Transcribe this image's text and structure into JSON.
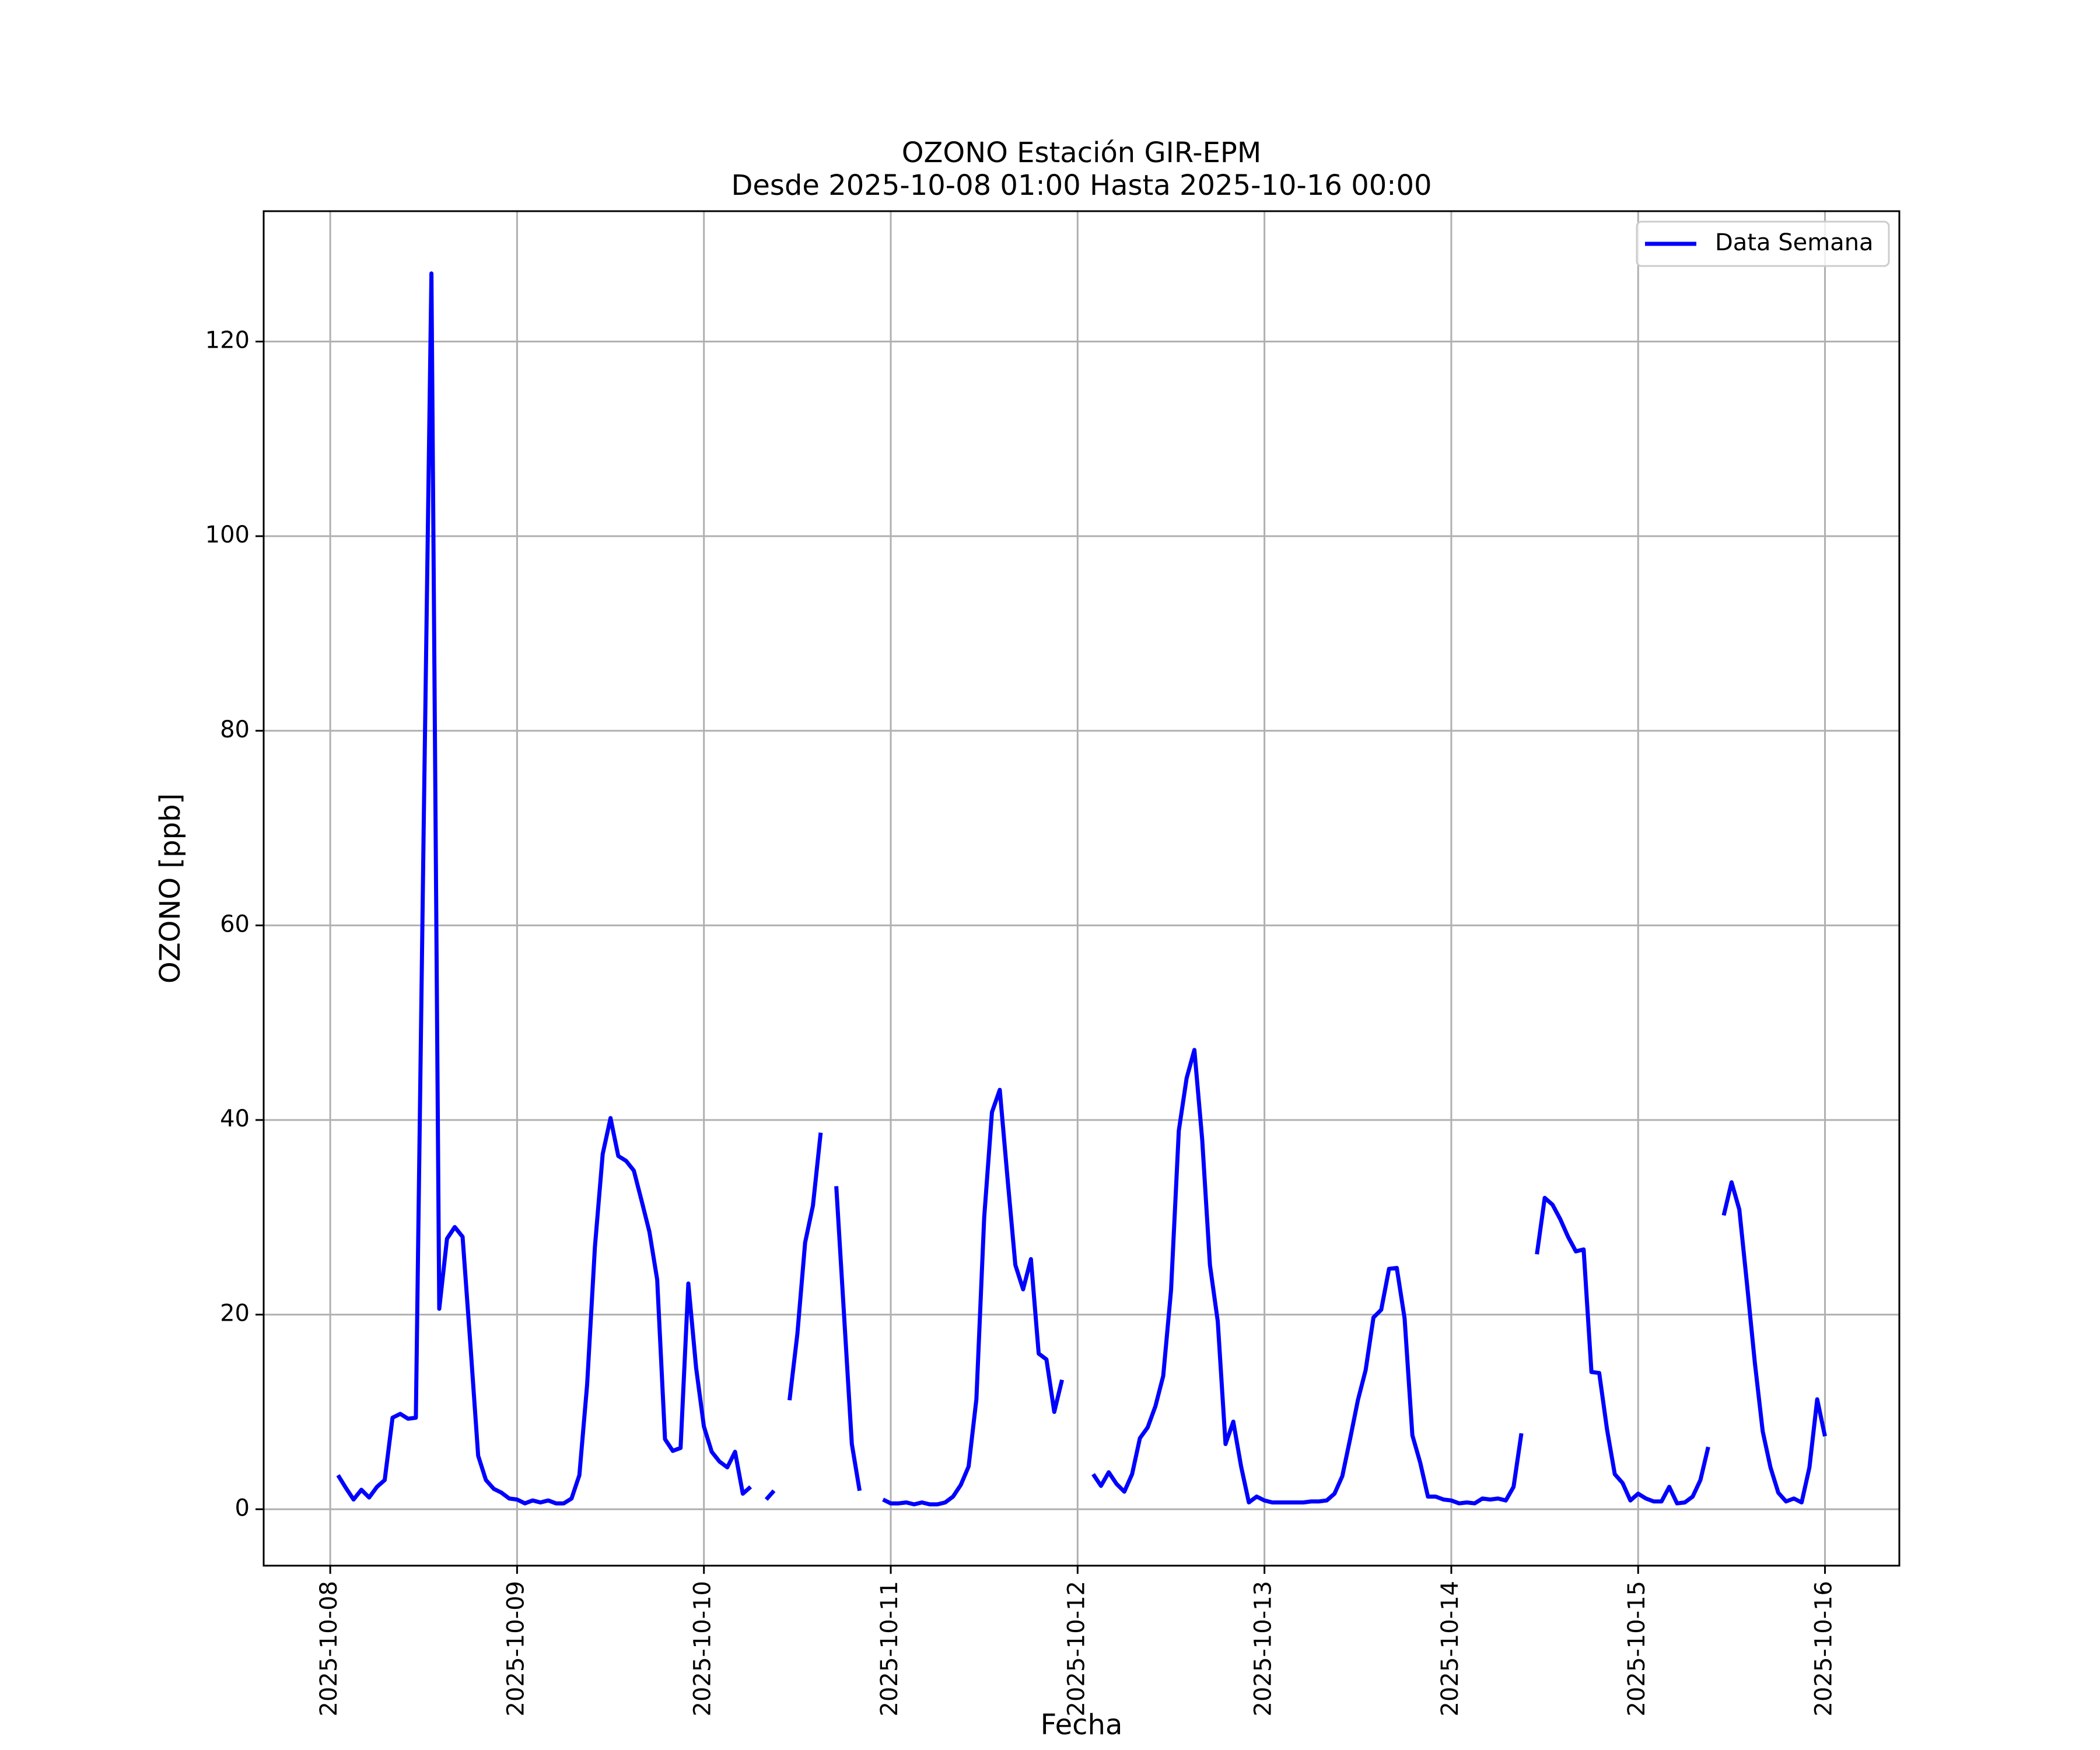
{
  "chart_data": {
    "type": "line",
    "title": "OZONO Estación GIR-EPM",
    "subtitle": "Desde 2025-10-08 01:00 Hasta 2025-10-16 00:00",
    "x_label": "Fecha",
    "y_label": "OZONO [ppb]",
    "x": [
      "2025-10-08 01:00",
      "2025-10-08 02:00",
      "2025-10-08 03:00",
      "2025-10-08 04:00",
      "2025-10-08 05:00",
      "2025-10-08 06:00",
      "2025-10-08 07:00",
      "2025-10-08 08:00",
      "2025-10-08 09:00",
      "2025-10-08 10:00",
      "2025-10-08 11:00",
      "2025-10-08 12:00",
      "2025-10-08 13:00",
      "2025-10-08 14:00",
      "2025-10-08 15:00",
      "2025-10-08 16:00",
      "2025-10-08 17:00",
      "2025-10-08 18:00",
      "2025-10-08 19:00",
      "2025-10-08 20:00",
      "2025-10-08 21:00",
      "2025-10-08 22:00",
      "2025-10-08 23:00",
      "2025-10-09 00:00",
      "2025-10-09 01:00",
      "2025-10-09 02:00",
      "2025-10-09 03:00",
      "2025-10-09 04:00",
      "2025-10-09 05:00",
      "2025-10-09 06:00",
      "2025-10-09 07:00",
      "2025-10-09 08:00",
      "2025-10-09 09:00",
      "2025-10-09 10:00",
      "2025-10-09 11:00",
      "2025-10-09 12:00",
      "2025-10-09 13:00",
      "2025-10-09 14:00",
      "2025-10-09 15:00",
      "2025-10-09 16:00",
      "2025-10-09 17:00",
      "2025-10-09 18:00",
      "2025-10-09 19:00",
      "2025-10-09 20:00",
      "2025-10-09 21:00",
      "2025-10-09 22:00",
      "2025-10-09 23:00",
      "2025-10-10 00:00",
      "2025-10-10 01:00",
      "2025-10-10 02:00",
      "2025-10-10 03:00",
      "2025-10-10 04:00",
      "2025-10-10 05:00",
      "2025-10-10 06:00",
      "2025-10-10 07:00",
      "2025-10-10 08:00",
      "2025-10-10 09:00",
      "2025-10-10 10:00",
      "2025-10-10 11:00",
      "2025-10-10 12:00",
      "2025-10-10 13:00",
      "2025-10-10 14:00",
      "2025-10-10 15:00",
      "2025-10-10 16:00",
      "2025-10-10 17:00",
      "2025-10-10 18:00",
      "2025-10-10 19:00",
      "2025-10-10 20:00",
      "2025-10-10 21:00",
      "2025-10-10 22:00",
      "2025-10-10 23:00",
      "2025-10-11 00:00",
      "2025-10-11 01:00",
      "2025-10-11 02:00",
      "2025-10-11 03:00",
      "2025-10-11 04:00",
      "2025-10-11 05:00",
      "2025-10-11 06:00",
      "2025-10-11 07:00",
      "2025-10-11 08:00",
      "2025-10-11 09:00",
      "2025-10-11 10:00",
      "2025-10-11 11:00",
      "2025-10-11 12:00",
      "2025-10-11 13:00",
      "2025-10-11 14:00",
      "2025-10-11 15:00",
      "2025-10-11 16:00",
      "2025-10-11 17:00",
      "2025-10-11 18:00",
      "2025-10-11 19:00",
      "2025-10-11 20:00",
      "2025-10-11 21:00",
      "2025-10-11 22:00",
      "2025-10-11 23:00",
      "2025-10-12 00:00",
      "2025-10-12 01:00",
      "2025-10-12 02:00",
      "2025-10-12 03:00",
      "2025-10-12 04:00",
      "2025-10-12 05:00",
      "2025-10-12 06:00",
      "2025-10-12 07:00",
      "2025-10-12 08:00",
      "2025-10-12 09:00",
      "2025-10-12 10:00",
      "2025-10-12 11:00",
      "2025-10-12 12:00",
      "2025-10-12 13:00",
      "2025-10-12 14:00",
      "2025-10-12 15:00",
      "2025-10-12 16:00",
      "2025-10-12 17:00",
      "2025-10-12 18:00",
      "2025-10-12 19:00",
      "2025-10-12 20:00",
      "2025-10-12 21:00",
      "2025-10-12 22:00",
      "2025-10-12 23:00",
      "2025-10-13 00:00",
      "2025-10-13 01:00",
      "2025-10-13 02:00",
      "2025-10-13 03:00",
      "2025-10-13 04:00",
      "2025-10-13 05:00",
      "2025-10-13 06:00",
      "2025-10-13 07:00",
      "2025-10-13 08:00",
      "2025-10-13 09:00",
      "2025-10-13 10:00",
      "2025-10-13 11:00",
      "2025-10-13 12:00",
      "2025-10-13 13:00",
      "2025-10-13 14:00",
      "2025-10-13 15:00",
      "2025-10-13 16:00",
      "2025-10-13 17:00",
      "2025-10-13 18:00",
      "2025-10-13 19:00",
      "2025-10-13 20:00",
      "2025-10-13 21:00",
      "2025-10-13 22:00",
      "2025-10-13 23:00",
      "2025-10-14 00:00",
      "2025-10-14 01:00",
      "2025-10-14 02:00",
      "2025-10-14 03:00",
      "2025-10-14 04:00",
      "2025-10-14 05:00",
      "2025-10-14 06:00",
      "2025-10-14 07:00",
      "2025-10-14 08:00",
      "2025-10-14 09:00",
      "2025-10-14 10:00",
      "2025-10-14 11:00",
      "2025-10-14 12:00",
      "2025-10-14 13:00",
      "2025-10-14 14:00",
      "2025-10-14 15:00",
      "2025-10-14 16:00",
      "2025-10-14 17:00",
      "2025-10-14 18:00",
      "2025-10-14 19:00",
      "2025-10-14 20:00",
      "2025-10-14 21:00",
      "2025-10-14 22:00",
      "2025-10-14 23:00",
      "2025-10-15 00:00",
      "2025-10-15 01:00",
      "2025-10-15 02:00",
      "2025-10-15 03:00",
      "2025-10-15 04:00",
      "2025-10-15 05:00",
      "2025-10-15 06:00",
      "2025-10-15 07:00",
      "2025-10-15 08:00",
      "2025-10-15 09:00",
      "2025-10-15 10:00",
      "2025-10-15 11:00",
      "2025-10-15 12:00",
      "2025-10-15 13:00",
      "2025-10-15 14:00",
      "2025-10-15 15:00",
      "2025-10-15 16:00",
      "2025-10-15 17:00",
      "2025-10-15 18:00",
      "2025-10-15 19:00",
      "2025-10-15 20:00",
      "2025-10-15 21:00",
      "2025-10-15 22:00",
      "2025-10-15 23:00",
      "2025-10-16 00:00"
    ],
    "series": [
      {
        "name": "Data Semana",
        "color": "#0000ff",
        "values": [
          3.5,
          2.2,
          1.0,
          2.0,
          1.2,
          2.3,
          3.0,
          9.4,
          9.8,
          9.3,
          9.4,
          70,
          127,
          20.6,
          27.8,
          29,
          28,
          17,
          5.5,
          3.0,
          2.1,
          1.7,
          1.1,
          1.0,
          0.6,
          0.9,
          0.7,
          0.9,
          0.6,
          0.6,
          1.1,
          3.5,
          12.8,
          27,
          36.5,
          40.2,
          36.3,
          35.8,
          34.8,
          31.7,
          28.5,
          23.6,
          7.2,
          6.0,
          6.3,
          23.2,
          14.5,
          8.5,
          5.9,
          4.9,
          4.3,
          5.9,
          1.6,
          2.3,
          null,
          1.0,
          1.9,
          null,
          11.2,
          18,
          27.4,
          31.2,
          38.7,
          null,
          33.2,
          20,
          6.7,
          1.9,
          null,
          null,
          1.0,
          0.6,
          0.6,
          0.7,
          0.5,
          0.7,
          0.5,
          0.5,
          0.7,
          1.3,
          2.5,
          4.4,
          11.3,
          30,
          40.8,
          43.1,
          34,
          25.1,
          22.6,
          25.7,
          16,
          15.4,
          10,
          13.3,
          null,
          null,
          null,
          3.6,
          2.4,
          3.8,
          2.6,
          1.8,
          3.6,
          7.3,
          8.4,
          10.6,
          13.7,
          22.5,
          38.9,
          44.3,
          47.2,
          38,
          25.1,
          19.3,
          6.7,
          9,
          4.4,
          0.7,
          1.3,
          0.9,
          0.7,
          0.7,
          0.7,
          0.7,
          0.7,
          0.8,
          0.8,
          0.9,
          1.6,
          3.4,
          7.2,
          11.2,
          14.3,
          19.7,
          20.5,
          24.7,
          24.8,
          19.6,
          7.6,
          4.8,
          1.3,
          1.3,
          1.0,
          0.9,
          0.6,
          0.7,
          0.6,
          1.1,
          1.0,
          1.1,
          0.9,
          2.3,
          7.8,
          null,
          26.2,
          32,
          31.3,
          29.8,
          28,
          26.5,
          26.7,
          14.1,
          14,
          8.2,
          3.6,
          2.7,
          0.9,
          1.6,
          1.1,
          0.8,
          0.8,
          2.3,
          0.6,
          0.7,
          1.3,
          3.0,
          6.4,
          null,
          30.2,
          33.6,
          30.8,
          23,
          15,
          8,
          4.3,
          1.7,
          0.8,
          1.1,
          0.7,
          4.3,
          11.3,
          7.5
        ]
      }
    ],
    "xlim": [
      "2025-10-07 15:27",
      "2025-10-16 09:33"
    ],
    "xticks": [
      "2025-10-08",
      "2025-10-09",
      "2025-10-10",
      "2025-10-11",
      "2025-10-12",
      "2025-10-13",
      "2025-10-14",
      "2025-10-15",
      "2025-10-16"
    ],
    "ylim": [
      -5.8,
      133.4
    ],
    "yticks": [
      0,
      20,
      40,
      60,
      80,
      100,
      120
    ],
    "grid": true,
    "legend": "upper right"
  }
}
